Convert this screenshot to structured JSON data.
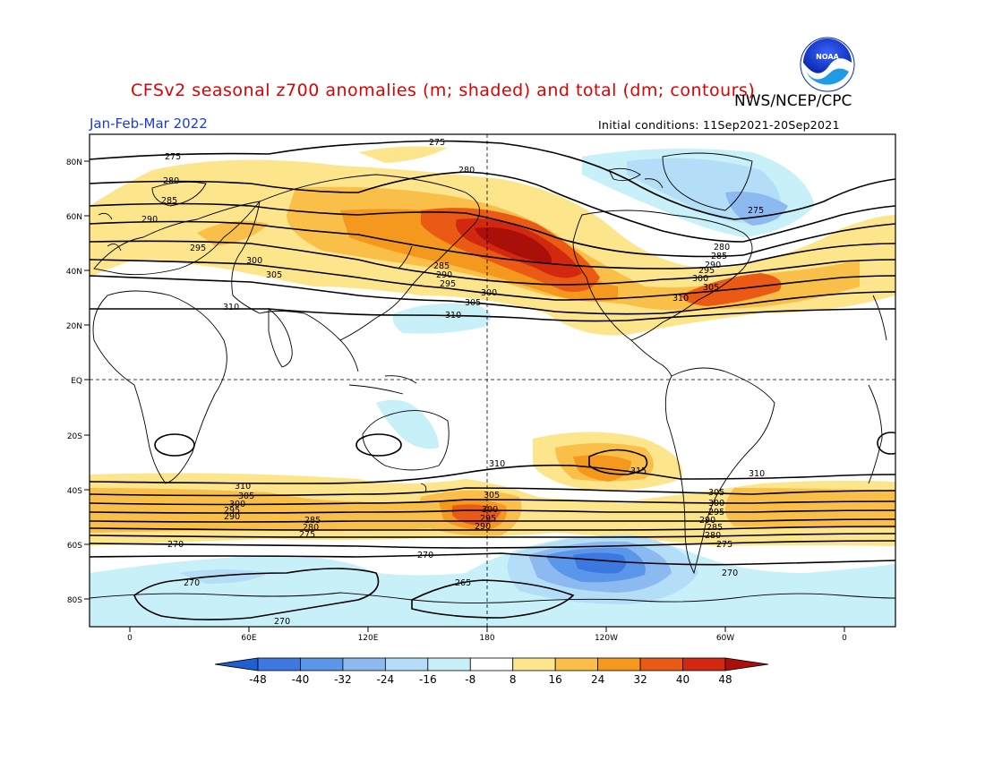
{
  "header": {
    "title": "CFSv2 seasonal z700 anomalies (m; shaded) and total (dm; contours)",
    "agency": "NWS/NCEP/CPC",
    "season": "Jan-Feb-Mar 2022",
    "initial_conditions": "Initial conditions: 11Sep2021-20Sep2021",
    "logo_text": "NOAA"
  },
  "axes": {
    "lat_labels": [
      "80N",
      "60N",
      "40N",
      "20N",
      "EQ",
      "20S",
      "40S",
      "60S",
      "80S"
    ],
    "lon_labels": [
      "0",
      "60E",
      "120E",
      "180",
      "120W",
      "60W",
      "0"
    ]
  },
  "colorbar": {
    "labels": [
      "-48",
      "-40",
      "-32",
      "-24",
      "-16",
      "-8",
      "8",
      "16",
      "24",
      "32",
      "40",
      "48"
    ],
    "colors": [
      "#1e5fd2",
      "#3c78e0",
      "#5a96ea",
      "#8cb9f0",
      "#b4def7",
      "#c8f0f8",
      "#ffffff",
      "#fde58c",
      "#f9bf48",
      "#f5981e",
      "#ea5a14",
      "#d2280f",
      "#aa0f0a"
    ]
  },
  "contour_labels": {
    "north": [
      "275",
      "280",
      "285",
      "290",
      "295",
      "300",
      "305",
      "310",
      "275",
      "280",
      "285",
      "290",
      "295",
      "300",
      "305",
      "310",
      "275",
      "280",
      "285",
      "290",
      "295",
      "300",
      "305",
      "310"
    ],
    "south": [
      "310",
      "305",
      "300",
      "295",
      "290",
      "285",
      "280",
      "275",
      "270",
      "310",
      "305",
      "300",
      "295",
      "290",
      "315",
      "310",
      "305",
      "300",
      "295",
      "290",
      "285",
      "280",
      "275",
      "270",
      "270",
      "265",
      "270",
      "270"
    ]
  }
}
